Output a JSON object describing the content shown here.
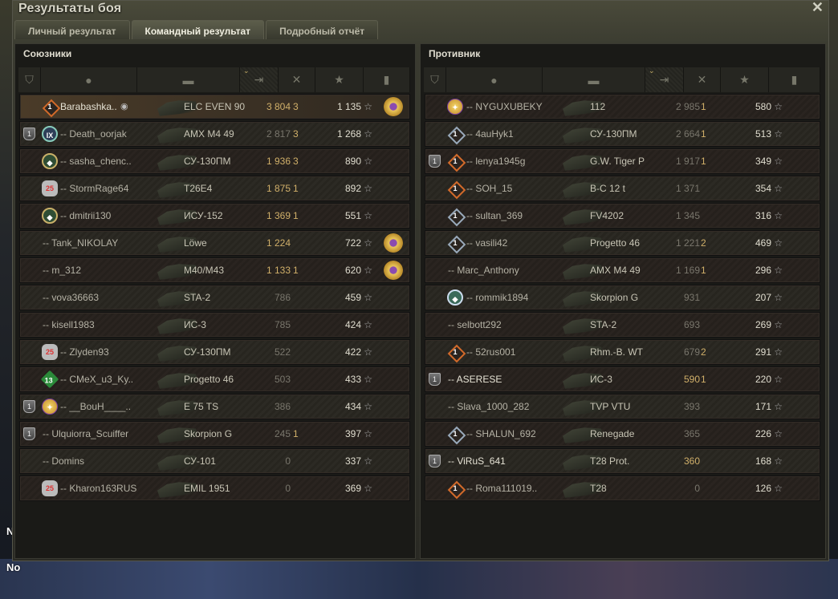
{
  "window": {
    "title": "Результаты боя",
    "close_icon": "close-icon"
  },
  "tabs": [
    {
      "label": "Личный результат",
      "active": false
    },
    {
      "label": "Командный результат",
      "active": true
    },
    {
      "label": "Подробный отчёт",
      "active": false
    }
  ],
  "columns": [
    "platoon-icon",
    "player-icon",
    "vehicle-icon",
    "damage-icon",
    "kills-icon",
    "xp-star-icon",
    "medal-icon"
  ],
  "sorted_column": "damage",
  "colors": {
    "accent_gold": "#d1b06a",
    "self_row": "#4a3b28"
  },
  "allies": {
    "title": "Союзники",
    "rows": [
      {
        "platoon": false,
        "badge": "diamond-1",
        "name": "Barabashka..",
        "hidden": true,
        "vehicle": "ELC EVEN 90",
        "damage": "3 804",
        "damage_hi": true,
        "kills": "3",
        "xp": "1 135",
        "medal": true,
        "self": true
      },
      {
        "platoon": true,
        "badge": "ix",
        "name": "-- Death_oorjak",
        "vehicle": "AMX M4 49",
        "damage": "2 817",
        "damage_hi": false,
        "kills": "3",
        "xp": "1 268",
        "medal": false
      },
      {
        "platoon": false,
        "badge": "green",
        "name": "-- sasha_chenc..",
        "vehicle": "СУ-130ПМ",
        "damage": "1 936",
        "damage_hi": true,
        "kills": "3",
        "xp": "890",
        "medal": false
      },
      {
        "platoon": false,
        "badge": "25",
        "name": "-- StormRage64",
        "vehicle": "T26E4",
        "damage": "1 875",
        "damage_hi": true,
        "kills": "1",
        "xp": "892",
        "medal": false
      },
      {
        "platoon": false,
        "badge": "green",
        "name": "-- dmitrii130",
        "vehicle": "ИСУ-152",
        "damage": "1 369",
        "damage_hi": true,
        "kills": "1",
        "xp": "551",
        "medal": false
      },
      {
        "platoon": false,
        "badge": "",
        "name": "-- Tank_NIKOLAY",
        "vehicle": "Löwe",
        "damage": "1 224",
        "damage_hi": true,
        "kills": "",
        "xp": "722",
        "medal": true
      },
      {
        "platoon": false,
        "badge": "",
        "name": "-- m_312",
        "vehicle": "M40/M43",
        "damage": "1 133",
        "damage_hi": true,
        "kills": "1",
        "xp": "620",
        "medal": true
      },
      {
        "platoon": false,
        "badge": "",
        "name": "-- vova36663",
        "vehicle": "STA-2",
        "damage": "786",
        "damage_hi": false,
        "kills": "",
        "xp": "459",
        "medal": false
      },
      {
        "platoon": false,
        "badge": "",
        "name": "-- kisell1983",
        "vehicle": "ИС-3",
        "damage": "785",
        "damage_hi": false,
        "kills": "",
        "xp": "424",
        "medal": false
      },
      {
        "platoon": false,
        "badge": "25",
        "name": "-- Zlyden93",
        "vehicle": "СУ-130ПМ",
        "damage": "522",
        "damage_hi": false,
        "kills": "",
        "xp": "422",
        "medal": false
      },
      {
        "platoon": false,
        "badge": "13",
        "name": "-- CMeX_u3_Ky..",
        "vehicle": "Progetto 46",
        "damage": "503",
        "damage_hi": false,
        "kills": "",
        "xp": "433",
        "medal": false
      },
      {
        "platoon": true,
        "badge": "gold",
        "name": "-- __BouH____..",
        "vehicle": "E 75 TS",
        "damage": "386",
        "damage_hi": false,
        "kills": "",
        "xp": "434",
        "medal": false
      },
      {
        "platoon": true,
        "badge": "",
        "name": "-- Ulquiorra_Scuiffer",
        "vehicle": "Skorpion G",
        "damage": "245",
        "damage_hi": false,
        "kills": "1",
        "xp": "397",
        "medal": false
      },
      {
        "platoon": false,
        "badge": "",
        "name": "-- Domins",
        "vehicle": "СУ-101",
        "damage": "0",
        "damage_hi": false,
        "kills": "",
        "xp": "337",
        "medal": false
      },
      {
        "platoon": false,
        "badge": "25",
        "name": "-- Kharon163RUS",
        "vehicle": "EMIL 1951",
        "damage": "0",
        "damage_hi": false,
        "kills": "",
        "xp": "369",
        "medal": false
      }
    ]
  },
  "enemies": {
    "title": "Противник",
    "rows": [
      {
        "platoon": false,
        "badge": "gold",
        "name": "-- NYGUXUBEKY",
        "vehicle": "112",
        "damage": "2 985",
        "damage_hi": false,
        "kills": "1",
        "xp": "580",
        "medal": false
      },
      {
        "platoon": false,
        "badge": "diamond-1s",
        "name": "-- 4auHyk1",
        "vehicle": "СУ-130ПМ",
        "damage": "2 664",
        "damage_hi": false,
        "kills": "1",
        "xp": "513",
        "medal": false
      },
      {
        "platoon": true,
        "badge": "diamond-1",
        "name": "-- lenya1945g",
        "vehicle": "G.W. Tiger P",
        "damage": "1 917",
        "damage_hi": false,
        "kills": "1",
        "xp": "349",
        "medal": false
      },
      {
        "platoon": false,
        "badge": "diamond-1",
        "name": "-- SOH_15",
        "vehicle": "B-C 12 t",
        "damage": "1 371",
        "damage_hi": false,
        "kills": "",
        "xp": "354",
        "medal": false
      },
      {
        "platoon": false,
        "badge": "diamond-1s",
        "name": "-- sultan_369",
        "vehicle": "FV4202",
        "damage": "1 345",
        "damage_hi": false,
        "kills": "",
        "xp": "316",
        "medal": false
      },
      {
        "platoon": false,
        "badge": "diamond-1s",
        "name": "-- vasili42",
        "vehicle": "Progetto 46",
        "damage": "1 221",
        "damage_hi": false,
        "kills": "2",
        "xp": "469",
        "medal": false
      },
      {
        "platoon": false,
        "badge": "",
        "name": "-- Marc_Anthony",
        "vehicle": "AMX M4 49",
        "damage": "1 169",
        "damage_hi": false,
        "kills": "1",
        "xp": "296",
        "medal": false
      },
      {
        "platoon": false,
        "badge": "teal",
        "name": "-- rommik1894",
        "vehicle": "Skorpion G",
        "damage": "931",
        "damage_hi": false,
        "kills": "",
        "xp": "207",
        "medal": false
      },
      {
        "platoon": false,
        "badge": "",
        "name": "-- selbott292",
        "vehicle": "STA-2",
        "damage": "693",
        "damage_hi": false,
        "kills": "",
        "xp": "269",
        "medal": false
      },
      {
        "platoon": false,
        "badge": "diamond-1",
        "name": "-- 52rus001",
        "vehicle": "Rhm.-B. WT",
        "damage": "679",
        "damage_hi": false,
        "kills": "2",
        "xp": "291",
        "medal": false
      },
      {
        "platoon": true,
        "badge": "",
        "name": "-- ASERESE",
        "bright": true,
        "vehicle": "ИС-3",
        "damage": "590",
        "damage_hi": true,
        "kills": "1",
        "xp": "220",
        "medal": false
      },
      {
        "platoon": false,
        "badge": "",
        "name": "-- Slava_1000_282",
        "vehicle": "TVP VTU",
        "damage": "393",
        "damage_hi": false,
        "kills": "",
        "xp": "171",
        "medal": false
      },
      {
        "platoon": false,
        "badge": "diamond-1s",
        "name": "-- SHALUN_692",
        "vehicle": "Renegade",
        "damage": "365",
        "damage_hi": false,
        "kills": "",
        "xp": "226",
        "medal": false
      },
      {
        "platoon": true,
        "badge": "",
        "name": "-- ViRuS_641",
        "bright": true,
        "vehicle": "T28 Prot.",
        "damage": "360",
        "damage_hi": true,
        "kills": "",
        "xp": "168",
        "medal": false
      },
      {
        "platoon": false,
        "badge": "diamond-1",
        "name": "-- Roma111019..",
        "vehicle": "T28",
        "damage": "0",
        "damage_hi": false,
        "kills": "",
        "xp": "126",
        "medal": false
      }
    ]
  },
  "background_labels": [
    "No",
    "No"
  ],
  "platoon_number": "1"
}
